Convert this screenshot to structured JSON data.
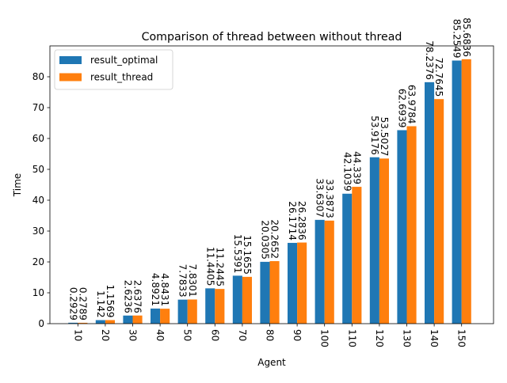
{
  "chart_data": {
    "type": "bar",
    "title": "Comparison of thread between without thread",
    "xlabel": "Agent",
    "ylabel": "Time",
    "categories": [
      "10",
      "20",
      "30",
      "40",
      "50",
      "60",
      "70",
      "80",
      "90",
      "100",
      "110",
      "120",
      "130",
      "140",
      "150"
    ],
    "series": [
      {
        "name": "result_optimal",
        "color": "#1f77b4",
        "values": [
          0.2929,
          1.142,
          2.6236,
          4.8921,
          7.7833,
          11.4405,
          15.5391,
          20.0305,
          26.1714,
          33.6307,
          42.1039,
          53.9176,
          62.6939,
          78.2376,
          85.2549
        ],
        "labels": [
          "0.2929",
          "1.142",
          "2.6236",
          "4.8921",
          "7.7833",
          "11.4405",
          "15.5391",
          "20.0305",
          "26.1714",
          "33.6307",
          "42.1039",
          "53.9176",
          "62.6939",
          "78.2376",
          "85.2549"
        ]
      },
      {
        "name": "result_thread",
        "color": "#ff7f0e",
        "values": [
          0.2789,
          1.1569,
          2.6376,
          4.8431,
          7.8301,
          11.2445,
          15.1655,
          20.2652,
          26.2836,
          33.3873,
          44.339,
          53.5027,
          63.9784,
          72.7645,
          85.6836
        ],
        "labels": [
          "0.2789",
          "1.1569",
          "2.6376",
          "4.8431",
          "7.8301",
          "11.2445",
          "15.1655",
          "20.2652",
          "26.2836",
          "33.3873",
          "44.339",
          "53.5027",
          "63.9784",
          "72.7645",
          "85.6836"
        ]
      }
    ],
    "ylim": [
      0,
      90
    ],
    "yticks": [
      "0",
      "10",
      "20",
      "30",
      "40",
      "50",
      "60",
      "70",
      "80"
    ],
    "legend_position": "top-left",
    "grid": false,
    "xtick_rotation": "vertical"
  }
}
